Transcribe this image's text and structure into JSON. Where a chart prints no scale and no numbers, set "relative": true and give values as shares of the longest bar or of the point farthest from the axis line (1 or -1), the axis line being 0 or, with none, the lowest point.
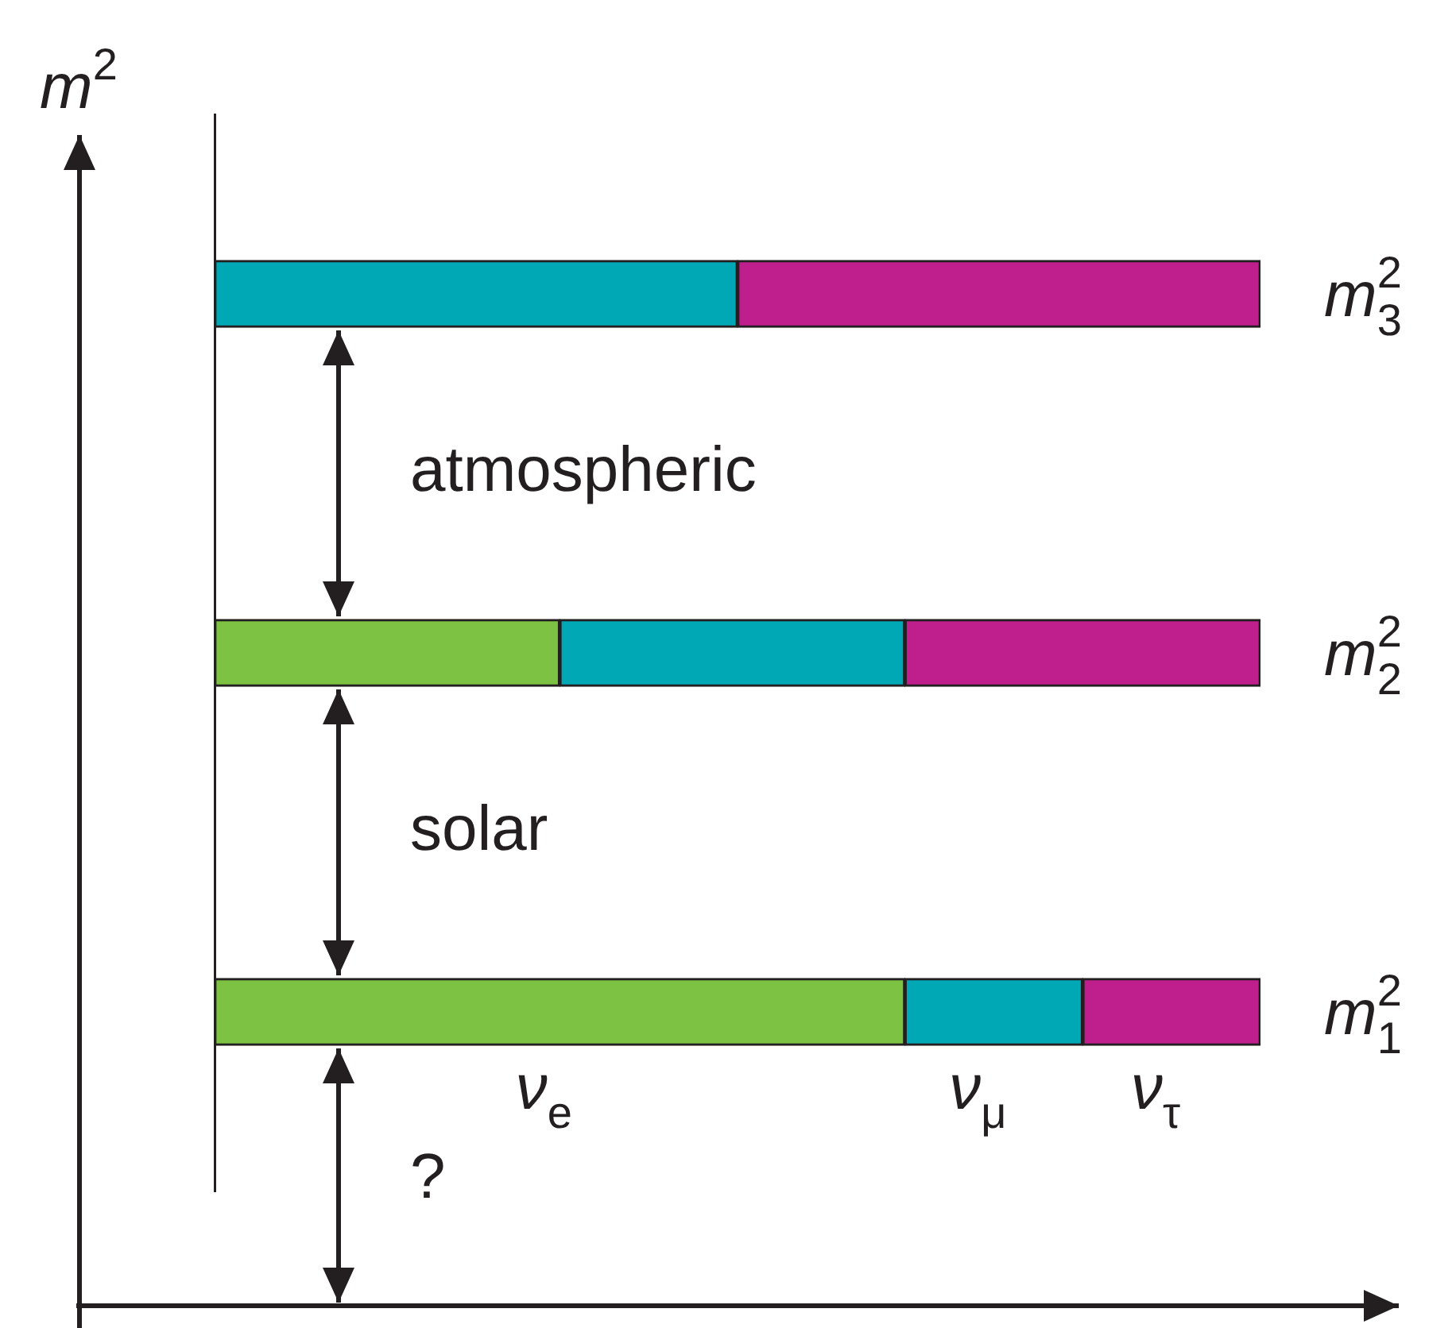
{
  "chart_data": {
    "type": "bar",
    "orientation": "horizontal",
    "stacked": true,
    "relative": true,
    "ylabel": "m$^{2}$",
    "categories": [
      "m$_{3}$$^{2}$",
      "m$_{2}$$^{2}$",
      "m$_{1}$$^{2}$"
    ],
    "series": [
      {
        "name": "ν$_{e}$",
        "color": "#7dc242",
        "values": [
          null,
          0.33,
          0.66
        ]
      },
      {
        "name": "ν$_{μ}$",
        "color": "#00a8b5",
        "values": [
          0.5,
          0.33,
          0.17
        ]
      },
      {
        "name": "ν$_{τ}$",
        "color": "#bf1f8c",
        "values": [
          0.5,
          0.34,
          0.17
        ]
      }
    ],
    "annotations": [
      "atmospheric",
      "solar",
      "?"
    ]
  }
}
